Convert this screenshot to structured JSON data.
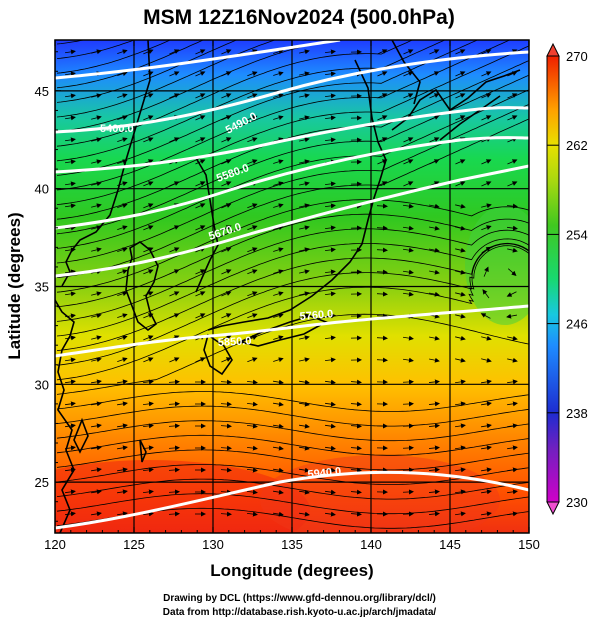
{
  "figure": {
    "title": "MSM 12Z16Nov2024 (500.0hPa)",
    "credits": [
      "Drawing by DCL (https://www.gfd-dennou.org/library/dcl/)",
      "Data from http://database.rish.kyoto-u.ac.jp/arch/jmadata/"
    ]
  },
  "map": {
    "xlabel": "Longitude (degrees)",
    "ylabel": "Latitude  (degrees)",
    "x_ticks": [
      120,
      125,
      130,
      135,
      140,
      145,
      150
    ],
    "y_ticks": [
      25,
      30,
      35,
      40,
      45
    ],
    "lon_range": [
      120,
      150
    ],
    "lat_range": [
      22.4,
      47.6
    ],
    "colorbar": {
      "ticks": [
        230,
        238,
        246,
        254,
        262,
        270
      ],
      "range": [
        230,
        270
      ],
      "colors": [
        "#d000c8",
        "#5a22c8",
        "#1e3cff",
        "#1e8cff",
        "#18c8e0",
        "#18d878",
        "#30c820",
        "#8ad010",
        "#e0e000",
        "#ffb000",
        "#ff6000",
        "#f02000"
      ]
    },
    "contour_labels": [
      "5400.0",
      "5490.0",
      "5580.0",
      "5670.0",
      "5760.0",
      "5850.0",
      "5940.0"
    ]
  },
  "chart_data": {
    "type": "heatmap",
    "title": "MSM 12Z16Nov2024 (500.0hPa)",
    "xlabel": "Longitude (degrees)",
    "ylabel": "Latitude  (degrees)",
    "xlim": [
      120,
      150
    ],
    "ylim": [
      22.4,
      47.6
    ],
    "colorbar_range": [
      230,
      270
    ],
    "colorbar_ticks": [
      230,
      238,
      246,
      254,
      262,
      270
    ],
    "isotherm_bands": [
      {
        "lat": 45,
        "value": 240
      },
      {
        "lat": 42,
        "value": 250
      },
      {
        "lat": 38,
        "value": 256
      },
      {
        "lat": 34,
        "value": 260
      },
      {
        "lat": 30,
        "value": 264
      },
      {
        "lat": 26,
        "value": 267
      },
      {
        "lat": 23,
        "value": 269
      }
    ],
    "height_contours": [
      {
        "label": "5400.0"
      },
      {
        "label": "5490.0"
      },
      {
        "label": "5580.0"
      },
      {
        "label": "5670.0"
      },
      {
        "label": "5760.0"
      },
      {
        "label": "5850.0"
      },
      {
        "label": "5940.0"
      }
    ]
  }
}
